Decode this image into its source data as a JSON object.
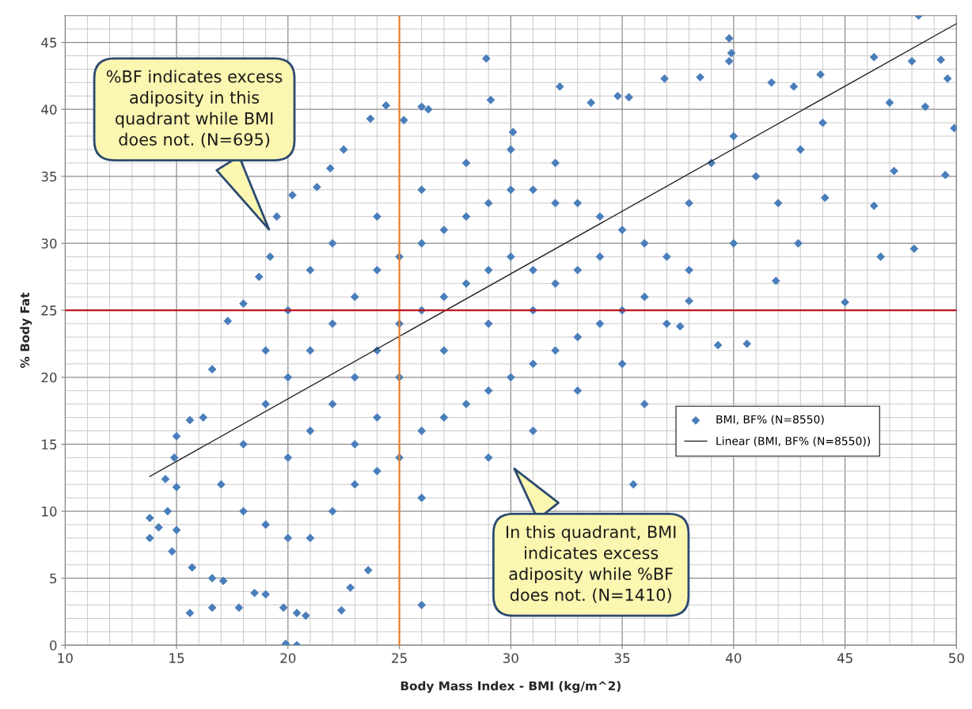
{
  "chart_data": {
    "type": "scatter",
    "xlabel": "Body Mass Index - BMI (kg/m^2)",
    "ylabel": "% Body Fat",
    "xlim": [
      10,
      50
    ],
    "ylim": [
      0,
      47
    ],
    "xticks": [
      10,
      {
        "value": 11,
        "label": null
      },
      {
        "value": 12,
        "label": null
      },
      {
        "value": 13,
        "label": null
      },
      {
        "value": 14,
        "label": null
      },
      15,
      {
        "value": 16,
        "label": null
      },
      {
        "value": 17,
        "label": null
      },
      {
        "value": 18,
        "label": null
      },
      {
        "value": 19,
        "label": null
      },
      20,
      {
        "value": 21,
        "label": null
      },
      {
        "value": 22,
        "label": null
      },
      {
        "value": 23,
        "label": null
      },
      {
        "value": 24,
        "label": null
      },
      25,
      {
        "value": 26,
        "label": null
      },
      {
        "value": 27,
        "label": null
      },
      {
        "value": 28,
        "label": null
      },
      {
        "value": 29,
        "label": null
      },
      30,
      {
        "value": 31,
        "label": null
      },
      {
        "value": 32,
        "label": null
      },
      {
        "value": 33,
        "label": null
      },
      {
        "value": 34,
        "label": null
      },
      35,
      {
        "value": 36,
        "label": null
      },
      {
        "value": 37,
        "label": null
      },
      {
        "value": 38,
        "label": null
      },
      {
        "value": 39,
        "label": null
      },
      40,
      {
        "value": 41,
        "label": null
      },
      {
        "value": 42,
        "label": null
      },
      {
        "value": 43,
        "label": null
      },
      {
        "value": 44,
        "label": null
      },
      45,
      {
        "value": 46,
        "label": null
      },
      {
        "value": 47,
        "label": null
      },
      {
        "value": 48,
        "label": null
      },
      {
        "value": 49,
        "label": null
      },
      50
    ],
    "yticks": [
      0,
      {
        "value": 1,
        "label": null
      },
      {
        "value": 2,
        "label": null
      },
      {
        "value": 3,
        "label": null
      },
      {
        "value": 4,
        "label": null
      },
      5,
      {
        "value": 6,
        "label": null
      },
      {
        "value": 7,
        "label": null
      },
      {
        "value": 8,
        "label": null
      },
      {
        "value": 9,
        "label": null
      },
      10,
      {
        "value": 11,
        "label": null
      },
      {
        "value": 12,
        "label": null
      },
      {
        "value": 13,
        "label": null
      },
      {
        "value": 14,
        "label": null
      },
      15,
      {
        "value": 16,
        "label": null
      },
      {
        "value": 17,
        "label": null
      },
      {
        "value": 18,
        "label": null
      },
      {
        "value": 19,
        "label": null
      },
      20,
      {
        "value": 21,
        "label": null
      },
      {
        "value": 22,
        "label": null
      },
      {
        "value": 23,
        "label": null
      },
      {
        "value": 24,
        "label": null
      },
      25,
      {
        "value": 26,
        "label": null
      },
      {
        "value": 27,
        "label": null
      },
      {
        "value": 28,
        "label": null
      },
      {
        "value": 29,
        "label": null
      },
      30,
      {
        "value": 31,
        "label": null
      },
      {
        "value": 32,
        "label": null
      },
      {
        "value": 33,
        "label": null
      },
      {
        "value": 34,
        "label": null
      },
      35,
      {
        "value": 36,
        "label": null
      },
      {
        "value": 37,
        "label": null
      },
      {
        "value": 38,
        "label": null
      },
      {
        "value": 39,
        "label": null
      },
      40,
      {
        "value": 41,
        "label": null
      },
      {
        "value": 42,
        "label": null
      },
      {
        "value": 43,
        "label": null
      },
      {
        "value": 44,
        "label": null
      },
      45,
      {
        "value": 46,
        "label": null
      }
    ],
    "grid": true,
    "legend": "right",
    "series": [
      {
        "name": "BMI, BF% (N=8550)",
        "color": "#4a7ebb",
        "marker": "diamond",
        "x": [
          13.8,
          13.8,
          14.2,
          14.5,
          14.6,
          14.9,
          15.0,
          15.0,
          15.0,
          14.8,
          15.6,
          15.7,
          15.6,
          16.2,
          16.6,
          16.6,
          16.6,
          17.3,
          17.1,
          17.8,
          18.5,
          19.0,
          19.8,
          20.4,
          19.9,
          20.4,
          20.8,
          22.4,
          22.8,
          23.6,
          26.0,
          18.0,
          18.7,
          19.2,
          19.5,
          20.2,
          21.3,
          21.9,
          22.5,
          23.7,
          24.4,
          25.2,
          26.0,
          26.3,
          28.9,
          29.1,
          30.1,
          32.2,
          33.6,
          34.8,
          35.3,
          36.9,
          38.5,
          39.8,
          39.9,
          39.8,
          41.7,
          42.7,
          43.9,
          46.3,
          48.3,
          48.0,
          49.3,
          49.6,
          49.9,
          49.5,
          48.1,
          46.6,
          47.0,
          48.6,
          45.0,
          40.6,
          39.3,
          37.6,
          35.5,
          38.0,
          41.9,
          42.9,
          44.1,
          46.3,
          47.2,
          18,
          19,
          20,
          21,
          22,
          23,
          24,
          25,
          26,
          27,
          28,
          29,
          30,
          31,
          32,
          33,
          34,
          35,
          36,
          37,
          38,
          17,
          18,
          19,
          20,
          21,
          22,
          23,
          24,
          25,
          26,
          27,
          28,
          29,
          30,
          31,
          32,
          33,
          34,
          35,
          36,
          20,
          21,
          22,
          23,
          24,
          25,
          26,
          27,
          28,
          29,
          30,
          31,
          32,
          33,
          34,
          22,
          24,
          26,
          28,
          30,
          32,
          19,
          20,
          21,
          25,
          27,
          29,
          31,
          24,
          23,
          26,
          29,
          31,
          33,
          35,
          36,
          37,
          38,
          39,
          40,
          41,
          42,
          40,
          43,
          44
        ],
        "values": [
          9.5,
          8.0,
          8.8,
          12.4,
          10.0,
          14.0,
          15.6,
          11.8,
          8.6,
          7.0,
          2.4,
          5.8,
          16.8,
          17.0,
          20.6,
          5.0,
          2.8,
          24.2,
          4.8,
          2.8,
          3.9,
          3.8,
          2.8,
          2.4,
          0.1,
          0.0,
          2.2,
          2.6,
          4.3,
          5.6,
          3.0,
          25.5,
          27.5,
          29.0,
          32.0,
          33.6,
          34.2,
          35.6,
          37.0,
          39.3,
          40.3,
          39.2,
          40.2,
          40.0,
          43.8,
          40.7,
          38.3,
          41.7,
          40.5,
          41.0,
          40.9,
          42.3,
          42.4,
          45.3,
          44.2,
          43.6,
          42.0,
          41.7,
          42.6,
          43.9,
          47.0,
          43.6,
          43.7,
          42.3,
          38.6,
          35.1,
          29.6,
          29.0,
          40.5,
          40.2,
          25.6,
          22.5,
          22.4,
          23.8,
          12.0,
          25.7,
          27.2,
          30.0,
          33.4,
          32.8,
          35.4,
          15,
          18,
          20,
          22,
          24,
          26,
          28,
          29,
          30,
          31,
          32,
          33,
          34,
          34,
          33,
          33,
          32,
          31,
          30,
          29,
          28,
          12,
          10,
          9,
          8,
          8,
          10,
          12,
          13,
          14,
          16,
          17,
          18,
          19,
          20,
          21,
          22,
          23,
          24,
          25,
          26,
          14,
          16,
          18,
          20,
          22,
          24,
          25,
          26,
          27,
          28,
          29,
          28,
          27,
          28,
          29,
          30,
          32,
          34,
          36,
          37,
          36,
          22,
          25,
          28,
          20,
          22,
          24,
          25,
          17,
          15,
          11,
          14,
          16,
          19,
          21,
          18,
          24,
          33,
          36,
          38,
          35,
          33,
          30,
          37,
          39
        ]
      },
      {
        "name": "Linear (BMI, BF% (N=8550))",
        "color": "#262626",
        "type": "line",
        "marker": "none",
        "line_style": "solid",
        "x": [
          13.8,
          50
        ],
        "values": [
          12.6,
          46.4
        ]
      }
    ],
    "ref_lines": [
      {
        "axis": "x",
        "value": 25,
        "color": "#e8822e",
        "line_style": "solid"
      },
      {
        "axis": "y",
        "value": 25,
        "color": "#c0161c",
        "line_style": "solid"
      }
    ],
    "annotations": [
      "%BF indicates excess\nadiposity in this\nquadrant while BMI\ndoes not. (N=695)",
      "In this quadrant, BMI\nindicates excess\nadiposity while %BF\ndoes not. (N=1410)"
    ]
  }
}
